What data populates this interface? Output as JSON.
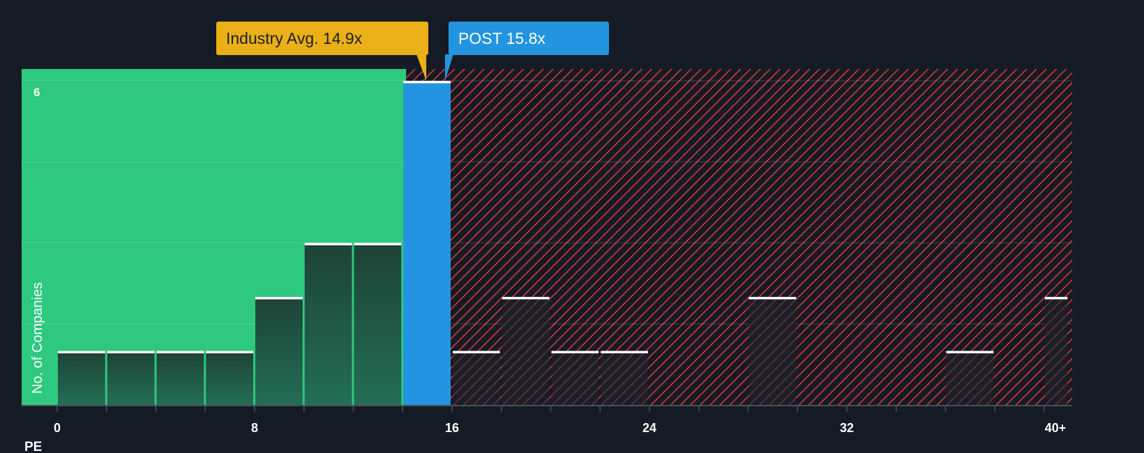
{
  "chart_data": {
    "type": "bar",
    "title": "",
    "xlabel": "PE",
    "ylabel": "No. of Companies",
    "x_ticks": [
      "0",
      "8",
      "16",
      "24",
      "32",
      "40+"
    ],
    "y_ticks": [
      "6"
    ],
    "ylim": [
      0,
      6
    ],
    "xlim": [
      0,
      41
    ],
    "bin_width": 2,
    "bins": [
      {
        "from": 0,
        "to": 2,
        "count": 1
      },
      {
        "from": 2,
        "to": 4,
        "count": 1
      },
      {
        "from": 4,
        "to": 6,
        "count": 1
      },
      {
        "from": 6,
        "to": 8,
        "count": 1
      },
      {
        "from": 8,
        "to": 10,
        "count": 2
      },
      {
        "from": 10,
        "to": 12,
        "count": 3
      },
      {
        "from": 12,
        "to": 14,
        "count": 3
      },
      {
        "from": 14,
        "to": 16,
        "count": 6,
        "highlight": true
      },
      {
        "from": 16,
        "to": 18,
        "count": 1
      },
      {
        "from": 18,
        "to": 20,
        "count": 2
      },
      {
        "from": 20,
        "to": 22,
        "count": 1
      },
      {
        "from": 22,
        "to": 24,
        "count": 1
      },
      {
        "from": 28,
        "to": 30,
        "count": 2
      },
      {
        "from": 36,
        "to": 38,
        "count": 1
      },
      {
        "from": 40,
        "to": 41,
        "count": 2
      }
    ],
    "annotations": [
      {
        "label": "Industry Avg. 14.9x",
        "value": 14.9,
        "color": "#ebb017"
      },
      {
        "label": "POST 15.8x",
        "value": 15.8,
        "color": "#2394df"
      }
    ],
    "regions": {
      "undervalued_color": "#2ec87f",
      "overvalued_color": "#e0393e"
    },
    "grid": true
  },
  "labels": {
    "industry_avg": "Industry Avg. 14.9x",
    "company": "POST 15.8x",
    "x_axis": "PE",
    "y_axis": "No. of Companies",
    "y_top": "6"
  }
}
